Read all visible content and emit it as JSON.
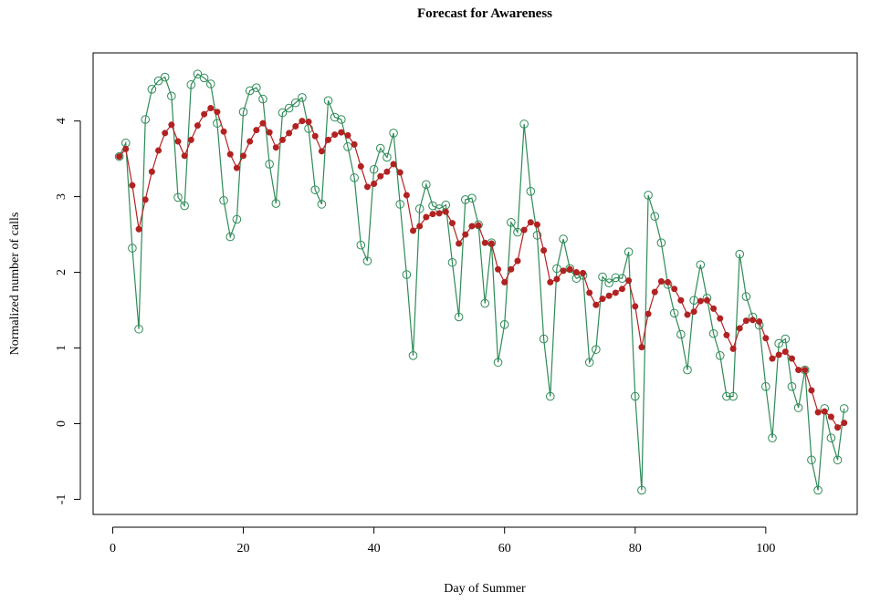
{
  "chart_data": {
    "type": "line",
    "title": "Forecast for Awareness",
    "xlabel": "Day of Summer",
    "ylabel": "Normalized number of calls",
    "xlim": [
      -3,
      114
    ],
    "ylim": [
      -1.2,
      4.9
    ],
    "xticks": [
      0,
      20,
      40,
      60,
      80,
      100
    ],
    "xtick_labels": [
      "0",
      "20",
      "40",
      "60",
      "80",
      "100"
    ],
    "yticks": [
      -1,
      0,
      1,
      2,
      3,
      4
    ],
    "ytick_labels": [
      "-1",
      "0",
      "1",
      "2",
      "3",
      "4"
    ],
    "grid": false,
    "legend": "none",
    "series": [
      {
        "marker": "open-circle",
        "color": "#2e8b57",
        "x": [
          1,
          2,
          3,
          4,
          5,
          6,
          7,
          8,
          9,
          10,
          11,
          12,
          13,
          14,
          15,
          16,
          17,
          18,
          19,
          20,
          21,
          22,
          23,
          24,
          25,
          26,
          27,
          28,
          29,
          30,
          31,
          32,
          33,
          34,
          35,
          36,
          37,
          38,
          39,
          40,
          41,
          42,
          43,
          44,
          45,
          46,
          47,
          48,
          49,
          50,
          51,
          52,
          53,
          54,
          55,
          56,
          57,
          58,
          59,
          60,
          61,
          62,
          63,
          64,
          65,
          66,
          67,
          68,
          69,
          70,
          71,
          72,
          73,
          74,
          75,
          76,
          77,
          78,
          79,
          80,
          81,
          82,
          83,
          84,
          85,
          86,
          87,
          88,
          89,
          90,
          91,
          92,
          93,
          94,
          95,
          96,
          97,
          98,
          99,
          100,
          101,
          102,
          103,
          104,
          105,
          106,
          107,
          108,
          109,
          110,
          111,
          112
        ],
        "values": [
          3.53,
          3.71,
          2.32,
          1.25,
          4.02,
          4.42,
          4.53,
          4.58,
          4.33,
          2.99,
          2.88,
          4.48,
          4.62,
          4.57,
          4.49,
          3.97,
          2.95,
          2.47,
          2.7,
          4.12,
          4.4,
          4.44,
          4.29,
          3.43,
          2.91,
          4.11,
          4.17,
          4.24,
          4.31,
          3.9,
          3.09,
          2.9,
          4.27,
          4.05,
          4.02,
          3.66,
          3.25,
          2.36,
          2.15,
          3.36,
          3.64,
          3.52,
          3.84,
          2.9,
          1.97,
          0.9,
          2.84,
          3.16,
          2.88,
          2.84,
          2.89,
          2.13,
          1.41,
          2.96,
          2.98,
          2.63,
          1.59,
          2.39,
          0.81,
          1.31,
          2.66,
          2.53,
          3.96,
          3.07,
          2.49,
          1.12,
          0.36,
          2.05,
          2.44,
          2.05,
          1.92,
          1.96,
          0.81,
          0.98,
          1.94,
          1.86,
          1.93,
          1.92,
          2.27,
          0.36,
          -0.88,
          3.02,
          2.74,
          2.39,
          1.84,
          1.46,
          1.18,
          0.71,
          1.63,
          2.1,
          1.66,
          1.19,
          0.9,
          0.36,
          0.36,
          2.24,
          1.68,
          1.41,
          1.3,
          0.49,
          -0.19,
          1.06,
          1.12,
          0.49,
          0.21,
          0.71,
          -0.48,
          -0.88,
          0.2,
          -0.19,
          -0.48,
          0.2
        ]
      },
      {
        "marker": "filled-circle",
        "color": "#b22222",
        "x": [
          1,
          2,
          3,
          4,
          5,
          6,
          7,
          8,
          9,
          10,
          11,
          12,
          13,
          14,
          15,
          16,
          17,
          18,
          19,
          20,
          21,
          22,
          23,
          24,
          25,
          26,
          27,
          28,
          29,
          30,
          31,
          32,
          33,
          34,
          35,
          36,
          37,
          38,
          39,
          40,
          41,
          42,
          43,
          44,
          45,
          46,
          47,
          48,
          49,
          50,
          51,
          52,
          53,
          54,
          55,
          56,
          57,
          58,
          59,
          60,
          61,
          62,
          63,
          64,
          65,
          66,
          67,
          68,
          69,
          70,
          71,
          72,
          73,
          74,
          75,
          76,
          77,
          78,
          79,
          80,
          81,
          82,
          83,
          84,
          85,
          86,
          87,
          88,
          89,
          90,
          91,
          92,
          93,
          94,
          95,
          96,
          97,
          98,
          99,
          100,
          101,
          102,
          103,
          104,
          105,
          106,
          107,
          108,
          109,
          110,
          111,
          112
        ],
        "values": [
          3.53,
          3.63,
          3.15,
          2.57,
          2.96,
          3.33,
          3.61,
          3.84,
          3.95,
          3.73,
          3.54,
          3.75,
          3.94,
          4.09,
          4.17,
          4.12,
          3.86,
          3.56,
          3.38,
          3.54,
          3.73,
          3.88,
          3.97,
          3.85,
          3.65,
          3.75,
          3.84,
          3.93,
          4.0,
          3.99,
          3.8,
          3.6,
          3.75,
          3.82,
          3.85,
          3.81,
          3.69,
          3.4,
          3.13,
          3.17,
          3.27,
          3.33,
          3.43,
          3.32,
          3.02,
          2.55,
          2.61,
          2.73,
          2.77,
          2.78,
          2.8,
          2.65,
          2.38,
          2.5,
          2.61,
          2.62,
          2.39,
          2.38,
          2.04,
          1.87,
          2.04,
          2.15,
          2.56,
          2.66,
          2.63,
          2.29,
          1.87,
          1.91,
          2.02,
          2.04,
          2.0,
          1.99,
          1.73,
          1.57,
          1.65,
          1.69,
          1.73,
          1.78,
          1.89,
          1.55,
          1.01,
          1.45,
          1.74,
          1.88,
          1.87,
          1.78,
          1.63,
          1.44,
          1.48,
          1.62,
          1.63,
          1.52,
          1.39,
          1.17,
          0.99,
          1.26,
          1.36,
          1.37,
          1.35,
          1.13,
          0.86,
          0.91,
          0.95,
          0.86,
          0.71,
          0.71,
          0.44,
          0.15,
          0.16,
          0.09,
          -0.05,
          0.01
        ]
      }
    ]
  }
}
